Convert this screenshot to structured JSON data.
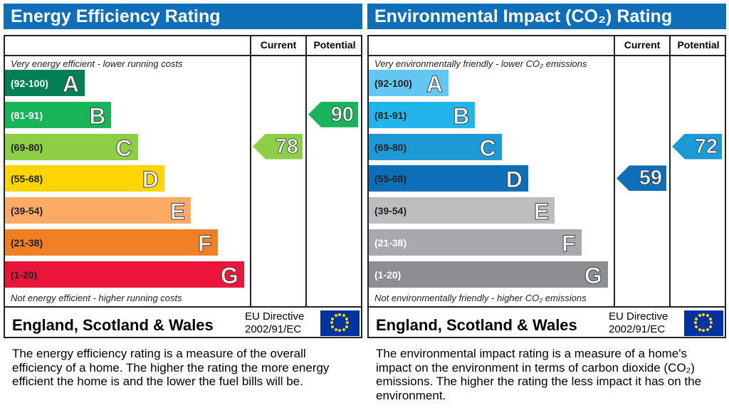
{
  "chart_data": [
    {
      "type": "bar",
      "title": "Energy Efficiency Rating",
      "columns": [
        "Current",
        "Potential"
      ],
      "top_note": "Very energy efficient - lower running costs",
      "bottom_note": "Not energy efficient - higher running costs",
      "bands": [
        {
          "letter": "A",
          "range": "(92-100)",
          "color": "#008054",
          "label_color": "#ffffff"
        },
        {
          "letter": "B",
          "range": "(81-91)",
          "color": "#19b459",
          "label_color": "#ffffff"
        },
        {
          "letter": "C",
          "range": "(69-80)",
          "color": "#8dce46",
          "label_color": "#222222"
        },
        {
          "letter": "D",
          "range": "(55-68)",
          "color": "#ffd500",
          "label_color": "#222222"
        },
        {
          "letter": "E",
          "range": "(39-54)",
          "color": "#fcaa65",
          "label_color": "#222222"
        },
        {
          "letter": "F",
          "range": "(21-38)",
          "color": "#ef8023",
          "label_color": "#222222"
        },
        {
          "letter": "G",
          "range": "(1-20)",
          "color": "#e9153b",
          "label_color": "#222222"
        }
      ],
      "current": {
        "value": 78,
        "band": "C",
        "color": "#8dce46"
      },
      "potential": {
        "value": 90,
        "band": "B",
        "color": "#19b459"
      },
      "region": "England, Scotland & Wales",
      "directive": [
        "EU Directive",
        "2002/91/EC"
      ],
      "description": "The energy efficiency rating is a measure of the overall efficiency of a home. The higher the rating the more energy efficient the home is and the lower the fuel bills will be."
    },
    {
      "type": "bar",
      "title": "Environmental Impact (CO₂) Rating",
      "columns": [
        "Current",
        "Potential"
      ],
      "top_note": "Very environmentally friendly - lower CO₂ emissions",
      "bottom_note": "Not environmentally friendly - higher CO₂ emissions",
      "bands": [
        {
          "letter": "A",
          "range": "(92-100)",
          "color": "#63c7f2",
          "label_color": "#222222"
        },
        {
          "letter": "B",
          "range": "(81-91)",
          "color": "#22b5eb",
          "label_color": "#222222"
        },
        {
          "letter": "C",
          "range": "(69-80)",
          "color": "#1c9ad6",
          "label_color": "#222222"
        },
        {
          "letter": "D",
          "range": "(55-68)",
          "color": "#0c6fb8",
          "label_color": "#222222"
        },
        {
          "letter": "E",
          "range": "(39-54)",
          "color": "#bbbdbf",
          "label_color": "#222222"
        },
        {
          "letter": "F",
          "range": "(21-38)",
          "color": "#a7a9ac",
          "label_color": "#ffffff"
        },
        {
          "letter": "G",
          "range": "(1-20)",
          "color": "#8c8e91",
          "label_color": "#ffffff"
        }
      ],
      "current": {
        "value": 59,
        "band": "D",
        "color": "#0c6fb8"
      },
      "potential": {
        "value": 72,
        "band": "C",
        "color": "#1c9ad6"
      },
      "region": "England, Scotland & Wales",
      "directive": [
        "EU Directive",
        "2002/91/EC"
      ],
      "description": "The environmental impact rating is a measure of a home's impact on the environment in terms of carbon dioxide (CO₂) emissions. The higher the rating the less impact it has on the environment."
    }
  ]
}
